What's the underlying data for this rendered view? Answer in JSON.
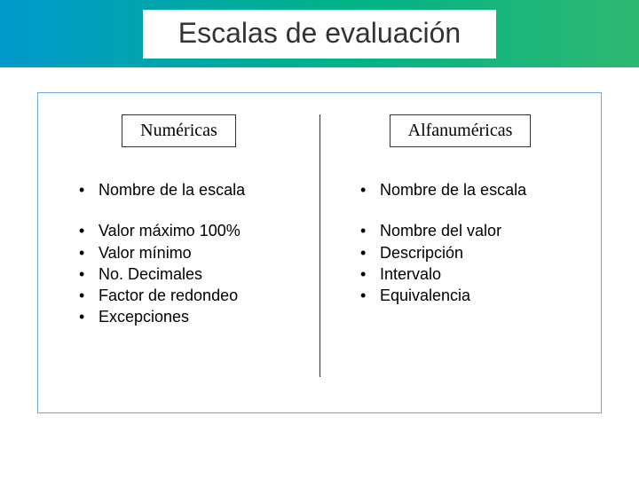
{
  "title": "Escalas de evaluación",
  "left": {
    "header": "Numéricas",
    "group1": [
      "Nombre de la escala"
    ],
    "group2": [
      "Valor máximo 100%",
      "Valor mínimo",
      "No. Decimales",
      "Factor de redondeo",
      "Excepciones"
    ]
  },
  "right": {
    "header": "Alfanuméricas",
    "group1": [
      "Nombre de la escala"
    ],
    "group2": [
      "Nombre del valor",
      "Descripción",
      "Intervalo",
      "Equivalencia"
    ]
  },
  "colors": {
    "gradient_start": "#0099cc",
    "gradient_mid": "#00b386",
    "gradient_end": "#2eb872",
    "frame_border": "#6fa8dc",
    "text": "#000000",
    "title_text": "#333333"
  }
}
